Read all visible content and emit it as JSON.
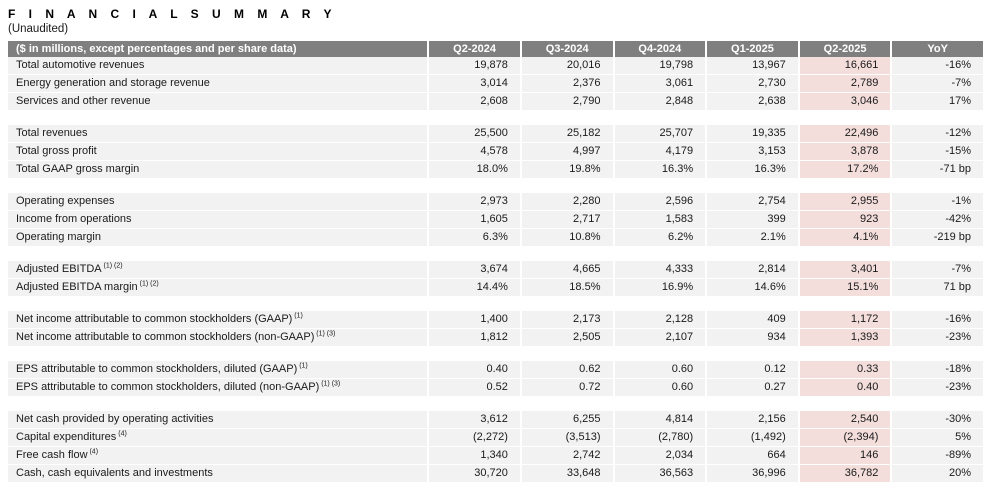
{
  "page": {
    "title": "F I N A N C I A L   S U M M A R Y",
    "subtitle": "(Unaudited)"
  },
  "colors": {
    "header_bg": "#7f7f7f",
    "header_text": "#ffffff",
    "row_bg": "#f2f2f2",
    "highlight_bg": "#f3dedc",
    "text": "#1a1a1a"
  },
  "table": {
    "header_label": "($ in millions, except percentages and per share data)",
    "columns": [
      "Q2-2024",
      "Q3-2024",
      "Q4-2024",
      "Q1-2025",
      "Q2-2025",
      "YoY"
    ],
    "highlight_column": "Q2-2025",
    "highlight_col_index": 4,
    "sections": [
      {
        "rows": [
          {
            "label": "Total automotive revenues",
            "footnote": "",
            "values": [
              "19,878",
              "20,016",
              "19,798",
              "13,967",
              "16,661",
              "-16%"
            ]
          },
          {
            "label": "Energy generation and storage revenue",
            "footnote": "",
            "values": [
              "3,014",
              "2,376",
              "3,061",
              "2,730",
              "2,789",
              "-7%"
            ]
          },
          {
            "label": "Services and other revenue",
            "footnote": "",
            "values": [
              "2,608",
              "2,790",
              "2,848",
              "2,638",
              "3,046",
              "17%"
            ]
          }
        ]
      },
      {
        "rows": [
          {
            "label": "Total revenues",
            "footnote": "",
            "values": [
              "25,500",
              "25,182",
              "25,707",
              "19,335",
              "22,496",
              "-12%"
            ]
          },
          {
            "label": "Total gross profit",
            "footnote": "",
            "values": [
              "4,578",
              "4,997",
              "4,179",
              "3,153",
              "3,878",
              "-15%"
            ]
          },
          {
            "label": "Total GAAP gross margin",
            "footnote": "",
            "values": [
              "18.0%",
              "19.8%",
              "16.3%",
              "16.3%",
              "17.2%",
              "-71 bp"
            ]
          }
        ]
      },
      {
        "rows": [
          {
            "label": "Operating expenses",
            "footnote": "",
            "values": [
              "2,973",
              "2,280",
              "2,596",
              "2,754",
              "2,955",
              "-1%"
            ]
          },
          {
            "label": "Income from operations",
            "footnote": "",
            "values": [
              "1,605",
              "2,717",
              "1,583",
              "399",
              "923",
              "-42%"
            ]
          },
          {
            "label": "Operating margin",
            "footnote": "",
            "values": [
              "6.3%",
              "10.8%",
              "6.2%",
              "2.1%",
              "4.1%",
              "-219 bp"
            ]
          }
        ]
      },
      {
        "rows": [
          {
            "label": "Adjusted EBITDA",
            "footnote": "(1) (2)",
            "values": [
              "3,674",
              "4,665",
              "4,333",
              "2,814",
              "3,401",
              "-7%"
            ]
          },
          {
            "label": "Adjusted EBITDA margin",
            "footnote": "(1) (2)",
            "values": [
              "14.4%",
              "18.5%",
              "16.9%",
              "14.6%",
              "15.1%",
              "71 bp"
            ]
          }
        ]
      },
      {
        "rows": [
          {
            "label": "Net income attributable to common stockholders (GAAP)",
            "footnote": "(1)",
            "values": [
              "1,400",
              "2,173",
              "2,128",
              "409",
              "1,172",
              "-16%"
            ]
          },
          {
            "label": "Net income attributable to common stockholders (non-GAAP)",
            "footnote": "(1) (3)",
            "values": [
              "1,812",
              "2,505",
              "2,107",
              "934",
              "1,393",
              "-23%"
            ]
          }
        ]
      },
      {
        "rows": [
          {
            "label": "EPS attributable to common stockholders, diluted (GAAP)",
            "footnote": "(1)",
            "values": [
              "0.40",
              "0.62",
              "0.60",
              "0.12",
              "0.33",
              "-18%"
            ]
          },
          {
            "label": "EPS attributable to common stockholders, diluted (non-GAAP)",
            "footnote": "(1) (3)",
            "values": [
              "0.52",
              "0.72",
              "0.60",
              "0.27",
              "0.40",
              "-23%"
            ]
          }
        ]
      },
      {
        "rows": [
          {
            "label": "Net cash provided by operating activities",
            "footnote": "",
            "values": [
              "3,612",
              "6,255",
              "4,814",
              "2,156",
              "2,540",
              "-30%"
            ]
          },
          {
            "label": "Capital expenditures",
            "footnote": "(4)",
            "values": [
              "(2,272)",
              "(3,513)",
              "(2,780)",
              "(1,492)",
              "(2,394)",
              "5%"
            ]
          },
          {
            "label": "Free cash flow",
            "footnote": "(4)",
            "values": [
              "1,340",
              "2,742",
              "2,034",
              "664",
              "146",
              "-89%"
            ]
          },
          {
            "label": "Cash, cash equivalents and investments",
            "footnote": "",
            "values": [
              "30,720",
              "33,648",
              "36,563",
              "36,996",
              "36,782",
              "20%"
            ]
          }
        ]
      }
    ]
  }
}
